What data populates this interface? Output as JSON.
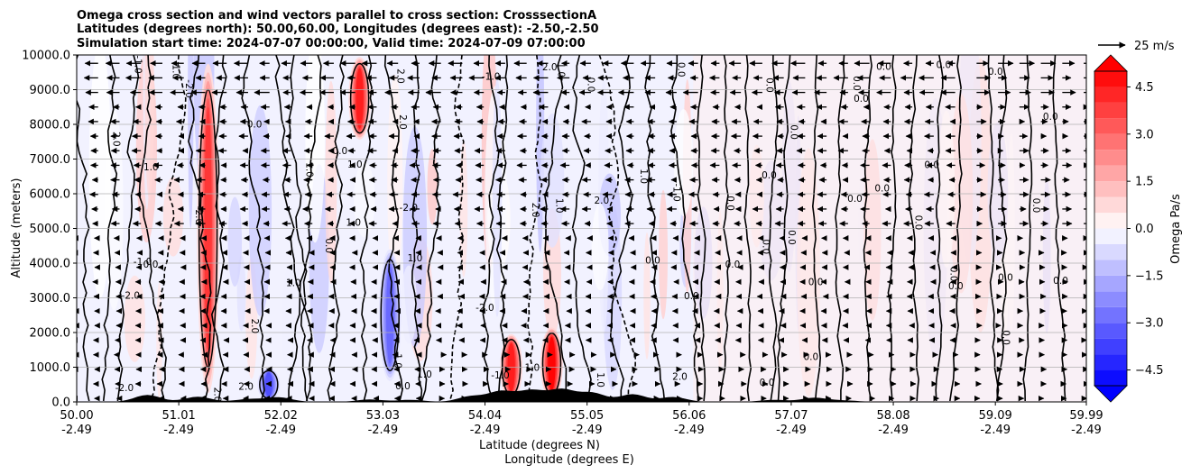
{
  "chart_data": {
    "type": "contour",
    "title_lines": [
      "Omega cross section and wind vectors parallel to cross section: CrosssectionA",
      "Latitudes (degrees north): 50.00,60.00, Longitudes (degrees east): -2.50,-2.50",
      "Simulation start time: 2024-07-07 00:00:00, Valid time: 2024-07-09 07:00:00"
    ],
    "xlabel_lines": [
      "Latitude (degrees N)",
      "Longitude (degrees E)"
    ],
    "ylabel": "Altitude (meters)",
    "x_ticks": [
      {
        "lat": "50.00",
        "lon": "-2.49",
        "value": 50.0
      },
      {
        "lat": "51.01",
        "lon": "-2.49",
        "value": 51.01
      },
      {
        "lat": "52.02",
        "lon": "-2.49",
        "value": 52.02
      },
      {
        "lat": "53.03",
        "lon": "-2.49",
        "value": 53.03
      },
      {
        "lat": "54.04",
        "lon": "-2.49",
        "value": 54.04
      },
      {
        "lat": "55.05",
        "lon": "-2.49",
        "value": 55.05
      },
      {
        "lat": "56.06",
        "lon": "-2.49",
        "value": 56.06
      },
      {
        "lat": "57.07",
        "lon": "-2.49",
        "value": 57.07
      },
      {
        "lat": "58.08",
        "lon": "-2.49",
        "value": 58.08
      },
      {
        "lat": "59.09",
        "lon": "-2.49",
        "value": 59.09
      },
      {
        "lat": "59.99",
        "lon": "-2.49",
        "value": 59.99
      }
    ],
    "xlim": [
      50.0,
      59.99
    ],
    "ylim": [
      0,
      10000
    ],
    "y_ticks": [
      "0.0",
      "1000.0",
      "2000.0",
      "3000.0",
      "4000.0",
      "5000.0",
      "6000.0",
      "7000.0",
      "8000.0",
      "9000.0",
      "10000.0"
    ],
    "y_tick_values": [
      0,
      1000,
      2000,
      3000,
      4000,
      5000,
      6000,
      7000,
      8000,
      9000,
      10000
    ],
    "colorbar": {
      "label": "Omega Pa/s",
      "range": [
        -5,
        5
      ],
      "ticks": [
        "−4.5",
        "−3.0",
        "−1.5",
        "0.0",
        "1.5",
        "3.0",
        "4.5"
      ],
      "tick_values": [
        -4.5,
        -3.0,
        -1.5,
        0.0,
        1.5,
        3.0,
        4.5
      ],
      "colormap": "bwr",
      "extend": "both"
    },
    "quiver_key": {
      "label": "25 m/s",
      "value": 25
    },
    "contour_label_values": [
      "0.0",
      "1.0",
      "-1.0",
      "2.0",
      "-2.0"
    ],
    "omega_features": [
      {
        "lat": 51.3,
        "alt_range": [
          0,
          10000
        ],
        "omega": 4.0
      },
      {
        "lat": 52.8,
        "alt_range": [
          7500,
          10000
        ],
        "omega": 4.5
      },
      {
        "lat": 53.1,
        "alt_range": [
          500,
          4500
        ],
        "omega": -3.0
      },
      {
        "lat": 54.3,
        "alt_range": [
          0,
          2000
        ],
        "omega": 4.5
      },
      {
        "lat": 54.7,
        "alt_range": [
          0,
          2200
        ],
        "omega": 5.0
      },
      {
        "lat": 51.9,
        "alt_range": [
          0,
          1000
        ],
        "omega": -3.5
      }
    ]
  },
  "colors": {
    "negative": "#0000ff",
    "positive": "#ff0000",
    "neutral": "#ffffff",
    "contour": "#000000",
    "terrain": "#000000"
  }
}
